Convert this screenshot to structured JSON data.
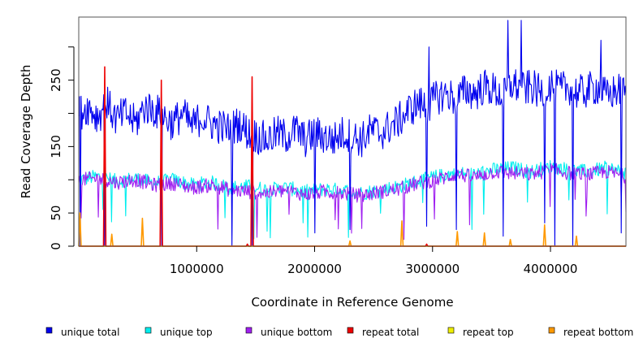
{
  "chart_data": {
    "type": "line",
    "title": "",
    "xlabel": "Coordinate in Reference Genome",
    "ylabel": "Read Coverage Depth",
    "xlim": [
      0,
      4640000
    ],
    "ylim": [
      0,
      345
    ],
    "x_ticks": [
      {
        "value": 1000000,
        "label": "1000000"
      },
      {
        "value": 2000000,
        "label": "2000000"
      },
      {
        "value": 3000000,
        "label": "3000000"
      },
      {
        "value": 4000000,
        "label": "4000000"
      }
    ],
    "y_ticks": [
      {
        "value": 0,
        "label": "0"
      },
      {
        "value": 50,
        "label": "50"
      },
      {
        "value": 150,
        "label": "150"
      },
      {
        "value": 250,
        "label": "250"
      }
    ],
    "grid": false,
    "legend_position": "bottom",
    "series": [
      {
        "name": "unique total",
        "color": "#0000ee",
        "x": [
          0,
          80000,
          160000,
          240000,
          320000,
          400000,
          480000,
          560000,
          640000,
          720000,
          800000,
          880000,
          960000,
          1040000,
          1120000,
          1200000,
          1280000,
          1360000,
          1440000,
          1520000,
          1600000,
          1680000,
          1760000,
          1840000,
          1920000,
          2000000,
          2080000,
          2160000,
          2240000,
          2320000,
          2400000,
          2480000,
          2560000,
          2640000,
          2720000,
          2800000,
          2880000,
          2960000,
          3040000,
          3120000,
          3200000,
          3280000,
          3360000,
          3440000,
          3520000,
          3600000,
          3680000,
          3760000,
          3840000,
          3920000,
          4000000,
          4080000,
          4160000,
          4240000,
          4320000,
          4400000,
          4480000,
          4560000,
          4640000
        ],
        "values": [
          200,
          210,
          195,
          215,
          190,
          200,
          185,
          210,
          205,
          195,
          185,
          200,
          180,
          195,
          185,
          180,
          175,
          185,
          170,
          165,
          160,
          170,
          165,
          175,
          160,
          170,
          165,
          160,
          170,
          165,
          160,
          175,
          170,
          180,
          190,
          205,
          215,
          210,
          225,
          230,
          220,
          235,
          230,
          240,
          235,
          225,
          245,
          235,
          240,
          230,
          245,
          235,
          240,
          230,
          235,
          240,
          225,
          235,
          230
        ],
        "spikes": [
          {
            "x": 10000,
            "value": 0
          },
          {
            "x": 220000,
            "value": 0
          },
          {
            "x": 700000,
            "value": 0
          },
          {
            "x": 1300000,
            "value": 0
          },
          {
            "x": 1470000,
            "value": 0
          },
          {
            "x": 2000000,
            "value": 20
          },
          {
            "x": 2300000,
            "value": 25
          },
          {
            "x": 2950000,
            "value": 30
          },
          {
            "x": 3200000,
            "value": 25
          },
          {
            "x": 3600000,
            "value": 15
          },
          {
            "x": 3640000,
            "value": 340
          },
          {
            "x": 3750000,
            "value": 340
          },
          {
            "x": 3950000,
            "value": 35
          },
          {
            "x": 4040000,
            "value": 0
          },
          {
            "x": 4190000,
            "value": 0
          },
          {
            "x": 4600000,
            "value": 20
          },
          {
            "x": 2970000,
            "value": 300
          },
          {
            "x": 4430000,
            "value": 310
          }
        ]
      },
      {
        "name": "unique top",
        "color": "#00eeee",
        "x": [
          0,
          160000,
          320000,
          480000,
          640000,
          800000,
          960000,
          1120000,
          1280000,
          1440000,
          1600000,
          1760000,
          1920000,
          2080000,
          2240000,
          2400000,
          2560000,
          2720000,
          2880000,
          3040000,
          3200000,
          3360000,
          3520000,
          3680000,
          3840000,
          4000000,
          4160000,
          4320000,
          4480000,
          4640000
        ],
        "values": [
          100,
          105,
          98,
          102,
          95,
          100,
          92,
          96,
          88,
          90,
          85,
          88,
          82,
          86,
          84,
          80,
          85,
          90,
          98,
          105,
          110,
          108,
          115,
          118,
          112,
          120,
          115,
          112,
          118,
          110
        ]
      },
      {
        "name": "unique bottom",
        "color": "#a020f0",
        "x": [
          0,
          160000,
          320000,
          480000,
          640000,
          800000,
          960000,
          1120000,
          1280000,
          1440000,
          1600000,
          1760000,
          1920000,
          2080000,
          2240000,
          2400000,
          2560000,
          2720000,
          2880000,
          3040000,
          3200000,
          3360000,
          3520000,
          3680000,
          3840000,
          4000000,
          4160000,
          4320000,
          4480000,
          4640000
        ],
        "values": [
          100,
          102,
          96,
          100,
          92,
          95,
          88,
          92,
          85,
          82,
          80,
          84,
          78,
          82,
          80,
          76,
          82,
          86,
          95,
          100,
          108,
          104,
          112,
          110,
          108,
          115,
          110,
          108,
          112,
          105
        ]
      },
      {
        "name": "repeat total",
        "color": "#ee0000",
        "x": [
          0,
          210000,
          220000,
          230000,
          690000,
          700000,
          710000,
          1420000,
          1430000,
          1440000,
          1460000,
          1470000,
          1480000,
          2940000,
          2950000,
          2960000,
          4640000
        ],
        "values": [
          0,
          0,
          270,
          0,
          0,
          250,
          0,
          0,
          3,
          0,
          0,
          255,
          0,
          0,
          3,
          0,
          0
        ]
      },
      {
        "name": "repeat top",
        "color": "#eeee00",
        "x": [
          0,
          4640000
        ],
        "values": [
          0,
          0
        ]
      },
      {
        "name": "repeat bottom",
        "color": "#ff9900",
        "x": [
          0,
          10000,
          20000,
          270000,
          280000,
          290000,
          530000,
          540000,
          550000,
          2290000,
          2300000,
          2310000,
          2730000,
          2740000,
          2750000,
          3200000,
          3210000,
          3220000,
          3430000,
          3440000,
          3450000,
          3650000,
          3660000,
          3670000,
          3940000,
          3950000,
          3960000,
          4210000,
          4220000,
          4230000,
          4640000
        ],
        "values": [
          0,
          50,
          0,
          0,
          18,
          0,
          0,
          42,
          0,
          0,
          8,
          0,
          0,
          38,
          0,
          0,
          22,
          0,
          0,
          20,
          0,
          0,
          10,
          0,
          0,
          32,
          0,
          0,
          15,
          0,
          0
        ]
      }
    ]
  }
}
